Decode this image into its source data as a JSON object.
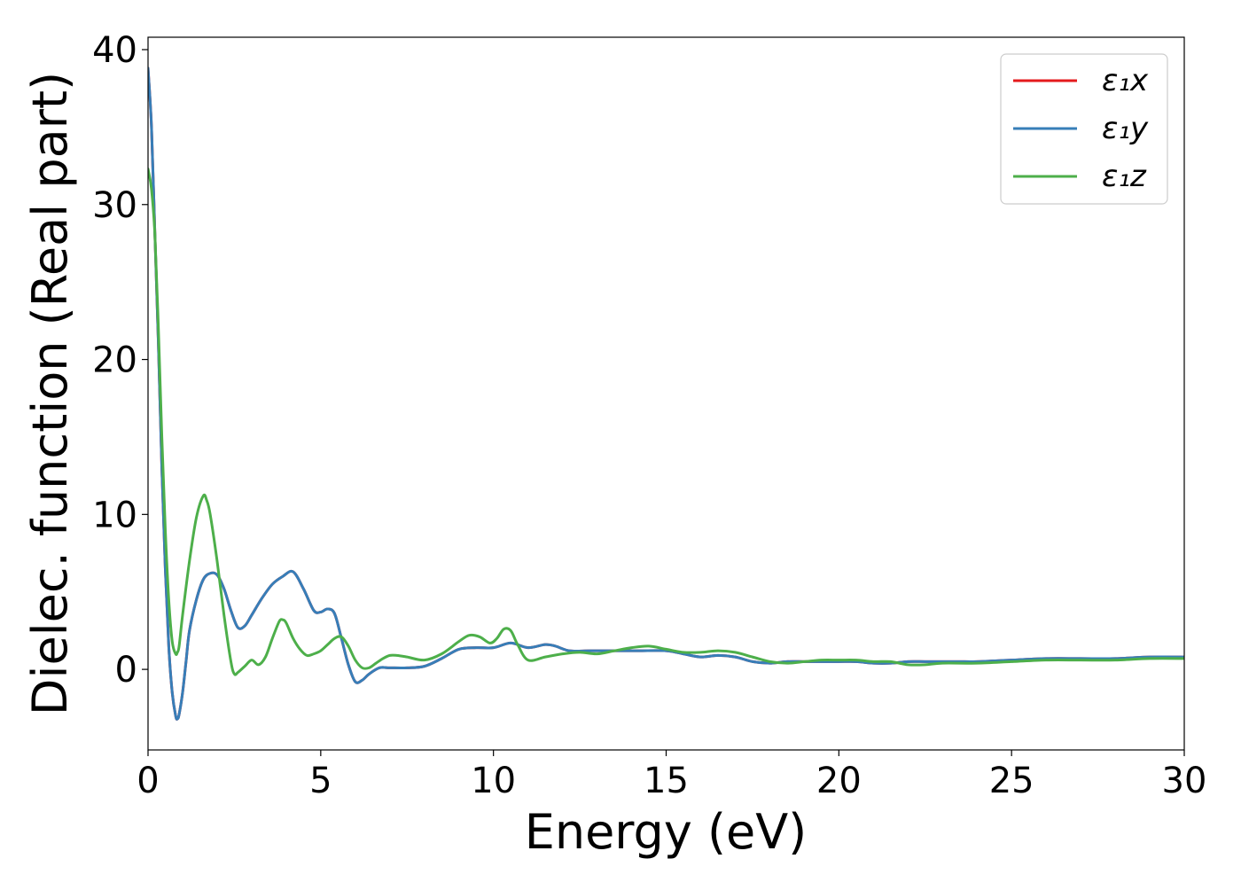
{
  "chart_data": {
    "type": "line",
    "title": "",
    "xlabel": "Energy (eV)",
    "ylabel": "Dielec. function (Real part)",
    "xlim": [
      0,
      30
    ],
    "ylim": [
      -5.2,
      40.8
    ],
    "xticks": [
      0,
      5,
      10,
      15,
      20,
      25,
      30
    ],
    "yticks": [
      0,
      10,
      20,
      30,
      40
    ],
    "xtick_labels": [
      "0",
      "5",
      "10",
      "15",
      "20",
      "25",
      "30"
    ],
    "ytick_labels": [
      "0",
      "10",
      "20",
      "30",
      "40"
    ],
    "grid": false,
    "legend_position": "top-right",
    "series": [
      {
        "name": "ε₁x",
        "color": "#e41a1c",
        "x": [
          0.0,
          0.1,
          0.2,
          0.3,
          0.4,
          0.5,
          0.6,
          0.7,
          0.8,
          0.85,
          0.9,
          1.0,
          1.1,
          1.2,
          1.4,
          1.6,
          1.8,
          2.0,
          2.2,
          2.4,
          2.6,
          2.8,
          3.0,
          3.3,
          3.6,
          3.9,
          4.2,
          4.5,
          4.8,
          5.0,
          5.2,
          5.4,
          5.6,
          5.8,
          6.0,
          6.2,
          6.4,
          6.7,
          7.0,
          7.5,
          8.0,
          8.5,
          9.0,
          9.5,
          10.0,
          10.5,
          11.0,
          11.5,
          11.8,
          12.2,
          12.8,
          13.5,
          14.2,
          15.0,
          15.5,
          16.0,
          16.5,
          17.0,
          17.5,
          18.0,
          18.5,
          19.0,
          19.5,
          20.0,
          20.5,
          21.0,
          21.5,
          22.0,
          22.5,
          23.0,
          23.5,
          24.0,
          25.0,
          26.0,
          27.0,
          28.0,
          29.0,
          30.0
        ],
        "values": [
          38.8,
          35.0,
          28.0,
          21.0,
          13.0,
          6.5,
          1.5,
          -1.5,
          -3.0,
          -3.2,
          -2.9,
          -1.5,
          0.5,
          2.5,
          4.5,
          5.8,
          6.2,
          6.1,
          5.2,
          3.8,
          2.7,
          2.8,
          3.5,
          4.6,
          5.5,
          6.0,
          6.3,
          5.2,
          3.8,
          3.7,
          3.9,
          3.6,
          2.0,
          0.3,
          -0.8,
          -0.7,
          -0.3,
          0.1,
          0.1,
          0.1,
          0.2,
          0.7,
          1.3,
          1.4,
          1.4,
          1.7,
          1.4,
          1.6,
          1.5,
          1.2,
          1.2,
          1.2,
          1.2,
          1.2,
          1.0,
          0.8,
          0.9,
          0.8,
          0.5,
          0.4,
          0.5,
          0.5,
          0.5,
          0.5,
          0.5,
          0.4,
          0.4,
          0.5,
          0.5,
          0.5,
          0.5,
          0.5,
          0.6,
          0.7,
          0.7,
          0.7,
          0.8,
          0.8
        ]
      },
      {
        "name": "ε₁y",
        "color": "#377eb8",
        "x": [
          0.0,
          0.1,
          0.2,
          0.3,
          0.4,
          0.5,
          0.6,
          0.7,
          0.8,
          0.85,
          0.9,
          1.0,
          1.1,
          1.2,
          1.4,
          1.6,
          1.8,
          2.0,
          2.2,
          2.4,
          2.6,
          2.8,
          3.0,
          3.3,
          3.6,
          3.9,
          4.2,
          4.5,
          4.8,
          5.0,
          5.2,
          5.4,
          5.6,
          5.8,
          6.0,
          6.2,
          6.4,
          6.7,
          7.0,
          7.5,
          8.0,
          8.5,
          9.0,
          9.5,
          10.0,
          10.5,
          11.0,
          11.5,
          11.8,
          12.2,
          12.8,
          13.5,
          14.2,
          15.0,
          15.5,
          16.0,
          16.5,
          17.0,
          17.5,
          18.0,
          18.5,
          19.0,
          19.5,
          20.0,
          20.5,
          21.0,
          21.5,
          22.0,
          22.5,
          23.0,
          23.5,
          24.0,
          25.0,
          26.0,
          27.0,
          28.0,
          29.0,
          30.0
        ],
        "values": [
          38.8,
          35.0,
          28.0,
          21.0,
          13.0,
          6.5,
          1.5,
          -1.5,
          -3.0,
          -3.2,
          -2.9,
          -1.5,
          0.5,
          2.5,
          4.5,
          5.8,
          6.2,
          6.1,
          5.2,
          3.8,
          2.7,
          2.8,
          3.5,
          4.6,
          5.5,
          6.0,
          6.3,
          5.2,
          3.8,
          3.7,
          3.9,
          3.6,
          2.0,
          0.3,
          -0.8,
          -0.7,
          -0.3,
          0.1,
          0.1,
          0.1,
          0.2,
          0.7,
          1.3,
          1.4,
          1.4,
          1.7,
          1.4,
          1.6,
          1.5,
          1.2,
          1.2,
          1.2,
          1.2,
          1.2,
          1.0,
          0.8,
          0.9,
          0.8,
          0.5,
          0.4,
          0.5,
          0.5,
          0.5,
          0.5,
          0.5,
          0.4,
          0.4,
          0.5,
          0.5,
          0.5,
          0.5,
          0.5,
          0.6,
          0.7,
          0.7,
          0.7,
          0.8,
          0.8
        ]
      },
      {
        "name": "ε₁z",
        "color": "#4daf4a",
        "x": [
          0.0,
          0.1,
          0.2,
          0.3,
          0.4,
          0.5,
          0.6,
          0.7,
          0.8,
          0.85,
          0.9,
          1.0,
          1.2,
          1.4,
          1.6,
          1.7,
          1.8,
          2.0,
          2.2,
          2.4,
          2.5,
          2.6,
          2.8,
          3.0,
          3.2,
          3.4,
          3.6,
          3.8,
          3.9,
          4.0,
          4.2,
          4.4,
          4.6,
          4.8,
          5.0,
          5.2,
          5.4,
          5.6,
          5.8,
          6.0,
          6.2,
          6.4,
          6.6,
          6.8,
          7.0,
          7.2,
          7.5,
          8.0,
          8.5,
          9.0,
          9.3,
          9.6,
          9.9,
          10.1,
          10.3,
          10.5,
          10.7,
          11.0,
          11.5,
          12.0,
          12.5,
          13.0,
          13.5,
          14.0,
          14.5,
          15.0,
          15.5,
          16.0,
          16.5,
          17.0,
          17.5,
          18.0,
          18.5,
          19.0,
          19.5,
          20.0,
          20.5,
          21.0,
          21.5,
          22.0,
          22.5,
          23.0,
          24.0,
          25.0,
          26.0,
          27.0,
          28.0,
          29.0,
          30.0
        ],
        "values": [
          32.3,
          31.0,
          28.0,
          22.0,
          15.0,
          9.0,
          4.5,
          1.8,
          1.0,
          1.1,
          1.5,
          3.5,
          7.0,
          9.8,
          11.2,
          10.9,
          10.0,
          7.0,
          3.5,
          0.5,
          -0.3,
          -0.2,
          0.2,
          0.6,
          0.3,
          0.8,
          2.0,
          3.1,
          3.2,
          3.0,
          2.0,
          1.3,
          0.9,
          1.0,
          1.2,
          1.6,
          2.0,
          2.1,
          1.5,
          0.6,
          0.1,
          0.1,
          0.4,
          0.7,
          0.9,
          0.9,
          0.8,
          0.6,
          1.0,
          1.8,
          2.2,
          2.1,
          1.7,
          2.0,
          2.6,
          2.5,
          1.6,
          0.6,
          0.8,
          1.0,
          1.1,
          1.0,
          1.2,
          1.4,
          1.5,
          1.3,
          1.1,
          1.1,
          1.2,
          1.1,
          0.8,
          0.5,
          0.4,
          0.5,
          0.6,
          0.6,
          0.6,
          0.5,
          0.5,
          0.3,
          0.3,
          0.4,
          0.4,
          0.5,
          0.6,
          0.6,
          0.6,
          0.7,
          0.7
        ]
      }
    ]
  }
}
